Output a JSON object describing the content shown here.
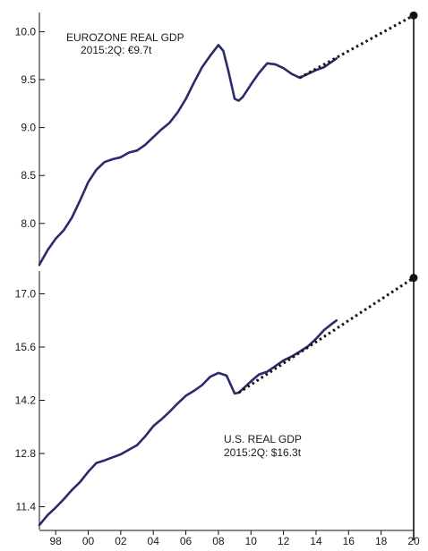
{
  "chart_data": [
    {
      "type": "line",
      "panel": "top",
      "annotation_title": "EUROZONE REAL GDP",
      "annotation_sub": "2015:2Q: €9.7t",
      "xlim": [
        1997,
        2020
      ],
      "ylim": [
        7.55,
        10.2
      ],
      "ytick_values": [
        8.0,
        8.5,
        9.0,
        9.5,
        10.0
      ],
      "ytick_labels": [
        "8.0",
        "8.5",
        "9.0",
        "9.5",
        "10.0"
      ],
      "series": [
        {
          "values_x": [
            1997.0,
            1997.5,
            1998.0,
            1998.5,
            1999.0,
            1999.5,
            2000.0,
            2000.5,
            2001.0,
            2001.5,
            2002.0,
            2002.5,
            2003.0,
            2003.5,
            2004.0,
            2004.5,
            2005.0,
            2005.5,
            2006.0,
            2006.5,
            2007.0,
            2007.5,
            2008.0,
            2008.3,
            2008.6,
            2009.0,
            2009.25,
            2009.5,
            2010.0,
            2010.5,
            2011.0,
            2011.5,
            2012.0,
            2012.5,
            2013.0,
            2013.5,
            2014.0,
            2014.5,
            2015.0,
            2015.25
          ],
          "values_y": [
            7.57,
            7.72,
            7.84,
            7.93,
            8.06,
            8.24,
            8.43,
            8.56,
            8.64,
            8.67,
            8.69,
            8.74,
            8.76,
            8.82,
            8.9,
            8.98,
            9.05,
            9.16,
            9.3,
            9.47,
            9.63,
            9.75,
            9.86,
            9.8,
            9.6,
            9.3,
            9.28,
            9.32,
            9.45,
            9.57,
            9.67,
            9.66,
            9.62,
            9.56,
            9.52,
            9.56,
            9.6,
            9.63,
            9.69,
            9.72
          ]
        }
      ],
      "projection": {
        "x": [
          2013.0,
          2020.0
        ],
        "y": [
          9.52,
          10.17
        ]
      }
    },
    {
      "type": "line",
      "panel": "bottom",
      "annotation_title": "U.S. REAL GDP",
      "annotation_sub": "2015:2Q: $16.3t",
      "xlim": [
        1997,
        2020
      ],
      "ylim": [
        10.8,
        17.6
      ],
      "ytick_values": [
        11.4,
        12.8,
        14.2,
        15.6,
        17.0
      ],
      "ytick_labels": [
        "11.4",
        "12.8",
        "14.2",
        "15.6",
        "17.0"
      ],
      "series": [
        {
          "values_x": [
            1997.0,
            1997.5,
            1998.0,
            1998.5,
            1999.0,
            1999.5,
            2000.0,
            2000.5,
            2001.0,
            2001.5,
            2002.0,
            2002.5,
            2003.0,
            2003.5,
            2004.0,
            2004.5,
            2005.0,
            2005.5,
            2006.0,
            2006.5,
            2007.0,
            2007.5,
            2008.0,
            2008.5,
            2009.0,
            2009.25,
            2009.5,
            2010.0,
            2010.5,
            2011.0,
            2011.5,
            2012.0,
            2012.5,
            2013.0,
            2013.5,
            2014.0,
            2014.5,
            2015.0,
            2015.25
          ],
          "values_y": [
            10.92,
            11.18,
            11.38,
            11.6,
            11.84,
            12.05,
            12.32,
            12.55,
            12.62,
            12.7,
            12.78,
            12.9,
            13.02,
            13.25,
            13.52,
            13.7,
            13.9,
            14.12,
            14.32,
            14.45,
            14.6,
            14.82,
            14.92,
            14.85,
            14.38,
            14.4,
            14.5,
            14.7,
            14.88,
            14.95,
            15.1,
            15.25,
            15.35,
            15.48,
            15.62,
            15.82,
            16.05,
            16.22,
            16.3
          ]
        }
      ],
      "projection": {
        "x": [
          2009.25,
          2020.0
        ],
        "y": [
          14.4,
          17.42
        ]
      }
    }
  ],
  "x_axis": {
    "ticks": [
      1998,
      2000,
      2002,
      2004,
      2006,
      2008,
      2010,
      2012,
      2014,
      2016,
      2018,
      2020
    ],
    "labels": [
      "98",
      "00",
      "02",
      "04",
      "06",
      "08",
      "10",
      "12",
      "14",
      "16",
      "18",
      "20"
    ]
  },
  "colors": {
    "line": "#2a2a6e",
    "projection": "#111111",
    "axis": "#111111"
  }
}
